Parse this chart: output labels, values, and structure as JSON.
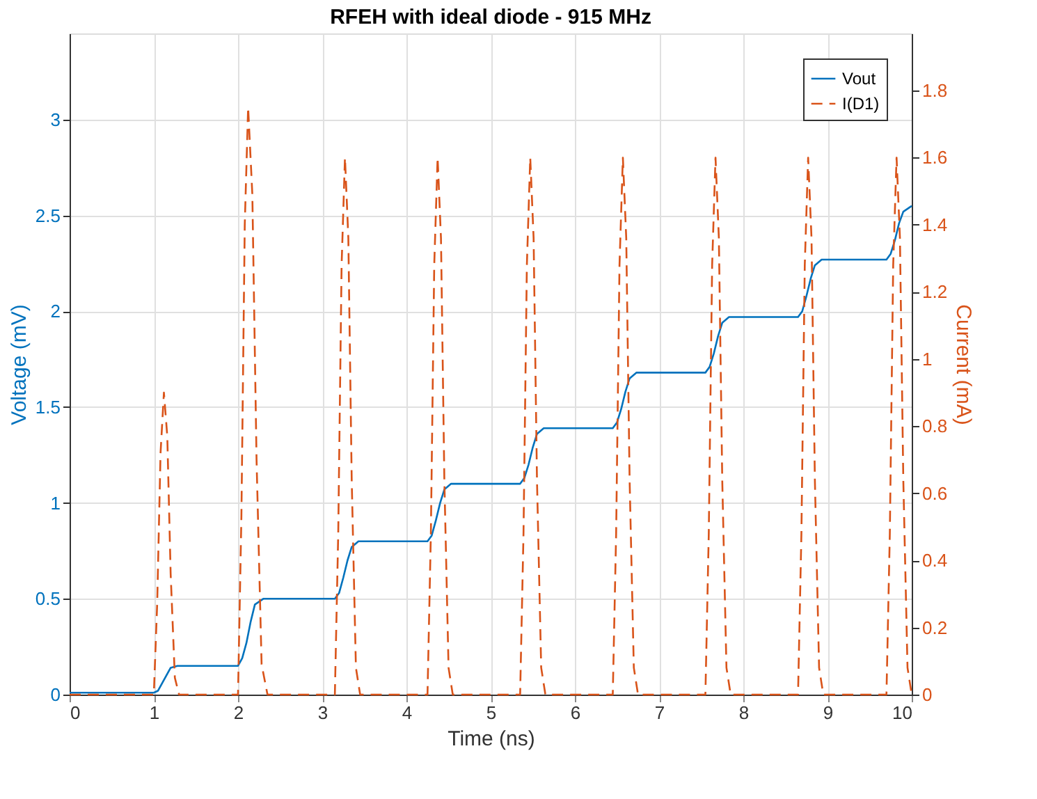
{
  "chart_data": {
    "type": "line",
    "title": "RFEH with ideal diode - 915 MHz",
    "xlabel": "Time (ns)",
    "ylabel": "Voltage (mV)",
    "y2label": "Current (mA)",
    "xlim": [
      0,
      10
    ],
    "xticks": [
      0,
      1,
      2,
      3,
      4,
      5,
      6,
      7,
      8,
      9,
      10
    ],
    "ylim": [
      0,
      3.45
    ],
    "yticks": [
      0,
      0.5,
      1,
      1.5,
      2,
      2.5,
      3
    ],
    "y2lim": [
      0,
      1.97
    ],
    "y2ticks": [
      0,
      0.2,
      0.4,
      0.6,
      0.8,
      1,
      1.2,
      1.4,
      1.6,
      1.8
    ],
    "grid": true,
    "legend": "top right",
    "series": [
      {
        "name": "Vout",
        "color": "#0072bd",
        "line_style": "solid",
        "x": [
          0,
          1.0,
          1.05,
          1.1,
          1.15,
          1.2,
          1.28,
          2.0,
          2.05,
          2.1,
          2.15,
          2.2,
          2.3,
          3.15,
          3.2,
          3.25,
          3.3,
          3.35,
          3.43,
          4.25,
          4.3,
          4.35,
          4.4,
          4.45,
          4.53,
          5.35,
          5.4,
          5.45,
          5.5,
          5.55,
          5.63,
          6.45,
          6.5,
          6.55,
          6.6,
          6.65,
          6.73,
          7.55,
          7.6,
          7.65,
          7.7,
          7.75,
          7.83,
          8.65,
          8.7,
          8.75,
          8.8,
          8.85,
          8.93,
          9.7,
          9.75,
          9.8,
          9.85,
          9.9,
          10
        ],
        "values": [
          0.01,
          0.01,
          0.02,
          0.06,
          0.1,
          0.14,
          0.15,
          0.15,
          0.19,
          0.27,
          0.38,
          0.47,
          0.5,
          0.5,
          0.53,
          0.61,
          0.7,
          0.77,
          0.8,
          0.8,
          0.83,
          0.91,
          1.0,
          1.07,
          1.1,
          1.1,
          1.13,
          1.2,
          1.29,
          1.36,
          1.39,
          1.39,
          1.42,
          1.49,
          1.58,
          1.65,
          1.68,
          1.68,
          1.71,
          1.78,
          1.87,
          1.94,
          1.97,
          1.97,
          2.0,
          2.08,
          2.17,
          2.24,
          2.27,
          2.27,
          2.3,
          2.37,
          2.46,
          2.52,
          2.55
        ]
      },
      {
        "name": "I(D1)",
        "color": "#d95319",
        "line_style": "dashed",
        "axis": "y2",
        "x": [
          0,
          1.0,
          1.04,
          1.08,
          1.12,
          1.16,
          1.2,
          1.25,
          1.3,
          2.0,
          2.04,
          2.08,
          2.12,
          2.17,
          2.22,
          2.28,
          2.35,
          3.15,
          3.19,
          3.23,
          3.27,
          3.31,
          3.35,
          3.4,
          3.45,
          4.25,
          4.29,
          4.33,
          4.37,
          4.41,
          4.45,
          4.5,
          4.55,
          5.35,
          5.39,
          5.43,
          5.47,
          5.51,
          5.55,
          5.6,
          5.65,
          6.45,
          6.49,
          6.53,
          6.57,
          6.61,
          6.65,
          6.7,
          6.75,
          7.55,
          7.59,
          7.63,
          7.67,
          7.71,
          7.75,
          7.8,
          7.85,
          8.65,
          8.69,
          8.73,
          8.77,
          8.81,
          8.85,
          8.9,
          8.95,
          9.7,
          9.74,
          9.78,
          9.82,
          9.86,
          9.9,
          9.95,
          10
        ],
        "values": [
          0,
          0,
          0.27,
          0.72,
          0.9,
          0.77,
          0.36,
          0.05,
          0,
          0,
          0.53,
          1.4,
          1.75,
          1.49,
          0.7,
          0.09,
          0,
          0,
          0.48,
          1.28,
          1.6,
          1.36,
          0.64,
          0.08,
          0,
          0,
          0.48,
          1.28,
          1.6,
          1.36,
          0.64,
          0.08,
          0,
          0,
          0.48,
          1.28,
          1.6,
          1.36,
          0.64,
          0.08,
          0,
          0,
          0.48,
          1.28,
          1.6,
          1.36,
          0.64,
          0.08,
          0,
          0,
          0.48,
          1.28,
          1.6,
          1.36,
          0.64,
          0.08,
          0,
          0,
          0.48,
          1.28,
          1.6,
          1.36,
          0.64,
          0.08,
          0,
          0,
          0.48,
          1.28,
          1.6,
          1.36,
          0.64,
          0.08,
          0
        ]
      }
    ]
  }
}
